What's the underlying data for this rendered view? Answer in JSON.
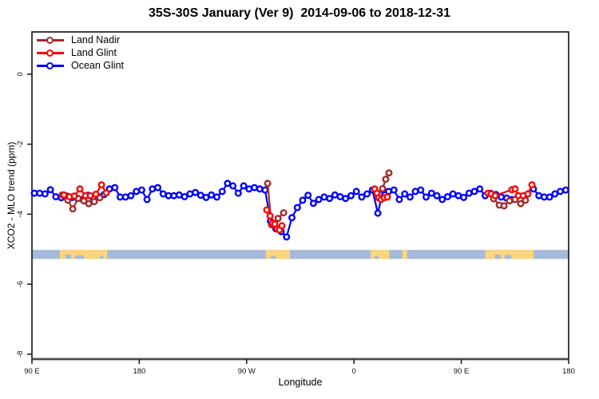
{
  "title": "35S-30S January (Ver 9)  2014-09-06 to 2018-12-31",
  "chart_data": {
    "type": "line",
    "title": "35S-30S January (Ver 9)  2014-09-06 to 2018-12-31",
    "xlabel": "Longitude",
    "ylabel": "XCO2 - MLO trend (ppm)",
    "x_axis": {
      "description": "longitude axis spanning 450 degrees eastward from 90E through 180, 90W, 0, 90E to 180",
      "range_deg": [
        0,
        450
      ],
      "tick_positions_deg": [
        0,
        90,
        180,
        270,
        360,
        450
      ],
      "tick_labels": [
        "90 E",
        "180",
        "90 W",
        "0",
        "90 E",
        "180"
      ]
    },
    "y_axis": {
      "range": [
        1.2,
        -8.15
      ],
      "tick_values": [
        0,
        -2,
        -4,
        -6,
        -8
      ],
      "tick_labels": [
        "0",
        "-2",
        "-4",
        "-6",
        "-8"
      ],
      "grid": false
    },
    "legend": [
      {
        "label": "Land Nadir",
        "color": "#A52A2A"
      },
      {
        "label": "Land Glint",
        "color": "#FF0000"
      },
      {
        "label": "Ocean Glint",
        "color": "#0000FF"
      }
    ],
    "map_strip": {
      "ocean_color": "#A6BBDB",
      "land_color": "#FBD57F",
      "y_ppm_top": -5.02,
      "y_ppm_bottom": -5.28,
      "land_segments_deg": [
        [
          23.4,
          63.0
        ],
        [
          196.0,
          216.3
        ],
        [
          284.0,
          299.5
        ],
        [
          310.5,
          314.5
        ],
        [
          380.0,
          420.5
        ]
      ],
      "coast_notches_deg": [
        [
          28,
          33,
          0.5
        ],
        [
          36,
          44,
          0.4
        ],
        [
          57,
          60,
          0.35
        ],
        [
          200,
          205,
          0.3
        ],
        [
          287,
          291,
          0.3
        ],
        [
          388,
          393,
          0.5
        ],
        [
          396,
          402,
          0.45
        ]
      ]
    },
    "series": [
      {
        "name": "Ocean Glint",
        "color": "#0000FF",
        "x_start_deg": 2,
        "x_step_deg": 4.5,
        "values": [
          -3.4,
          -3.4,
          -3.42,
          -3.3,
          -3.5,
          -3.53,
          -3.48,
          -3.52,
          -3.54,
          -3.58,
          -3.46,
          -3.55,
          -3.5,
          -3.44,
          -3.28,
          -3.24,
          -3.51,
          -3.51,
          -3.47,
          -3.35,
          -3.31,
          -3.58,
          -3.28,
          -3.24,
          -3.42,
          -3.47,
          -3.47,
          -3.45,
          -3.5,
          -3.42,
          -3.38,
          -3.46,
          -3.52,
          -3.45,
          -3.51,
          -3.35,
          -3.12,
          -3.19,
          -3.4,
          -3.19,
          -3.28,
          -3.24,
          -3.28,
          -3.31,
          -4.2,
          -4.42,
          -4.5,
          -4.65,
          -4.1,
          -3.81,
          -3.6,
          -3.46,
          -3.69,
          -3.58,
          -3.51,
          -3.55,
          -3.45,
          -3.5,
          -3.55,
          -3.47,
          -3.35,
          -3.51,
          -3.42,
          -3.31,
          -3.97,
          -3.31,
          -3.35,
          -3.31,
          -3.58,
          -3.42,
          -3.51,
          -3.35,
          -3.31,
          -3.51,
          -3.4,
          -3.47,
          -3.58,
          -3.5,
          -3.42,
          -3.47,
          -3.52,
          -3.4,
          -3.35,
          -3.28,
          -3.47,
          -3.4,
          -3.44,
          -3.51,
          -3.54,
          -3.58,
          null,
          null,
          null,
          -3.28,
          -3.47,
          -3.51,
          -3.51,
          -3.42,
          -3.35,
          -3.31
        ]
      },
      {
        "name": "Land Glint",
        "color": "#FF0000",
        "clusters": [
          [
            [
              26.8,
              -3.45
            ],
            [
              31.5,
              -3.5
            ],
            [
              35.5,
              -3.48
            ],
            [
              40.2,
              -3.28
            ],
            [
              44.9,
              -3.47
            ],
            [
              48.9,
              -3.47
            ],
            [
              53.6,
              -3.43
            ],
            [
              58.3,
              -3.16
            ],
            [
              62.3,
              -3.39
            ]
          ],
          [
            [
              196.9,
              -3.88
            ],
            [
              199.6,
              -4.05
            ],
            [
              201.6,
              -4.25
            ],
            [
              203.6,
              -4.28
            ],
            [
              205.6,
              -4.42
            ],
            [
              207.6,
              -4.45
            ],
            [
              209.6,
              -4.33
            ]
          ],
          [
            [
              287.3,
              -3.28
            ],
            [
              289.3,
              -3.4
            ],
            [
              290.6,
              -3.53
            ],
            [
              292.7,
              -3.58
            ],
            [
              295.3,
              -3.53
            ],
            [
              298.0,
              -3.51
            ]
          ],
          [
            [
              382.4,
              -3.4
            ],
            [
              385.0,
              -3.42
            ],
            [
              388.4,
              -3.47
            ],
            [
              402.4,
              -3.3
            ],
            [
              405.1,
              -3.28
            ],
            [
              407.8,
              -3.47
            ],
            [
              411.8,
              -3.47
            ],
            [
              415.8,
              -3.42
            ],
            [
              419.2,
              -3.16
            ]
          ]
        ]
      },
      {
        "name": "Land Nadir",
        "color": "#A52A2A",
        "clusters": [
          [
            [
              25.4,
              -3.45
            ],
            [
              30.1,
              -3.6
            ],
            [
              34.2,
              -3.85
            ],
            [
              38.8,
              -3.55
            ],
            [
              43.5,
              -3.62
            ],
            [
              47.6,
              -3.7
            ],
            [
              52.2,
              -3.64
            ],
            [
              56.9,
              -3.53
            ]
          ],
          [
            [
              197.6,
              -3.12
            ],
            [
              200.9,
              -4.3
            ],
            [
              206.3,
              -4.12
            ],
            [
              211.0,
              -3.96
            ]
          ],
          [
            [
              294.0,
              -3.27
            ],
            [
              296.6,
              -3.0
            ],
            [
              299.3,
              -2.82
            ]
          ],
          [
            [
              387.1,
              -3.56
            ],
            [
              391.8,
              -3.74
            ],
            [
              395.8,
              -3.76
            ],
            [
              400.4,
              -3.62
            ],
            [
              405.1,
              -3.58
            ],
            [
              409.8,
              -3.7
            ],
            [
              413.8,
              -3.6
            ]
          ]
        ]
      }
    ]
  }
}
